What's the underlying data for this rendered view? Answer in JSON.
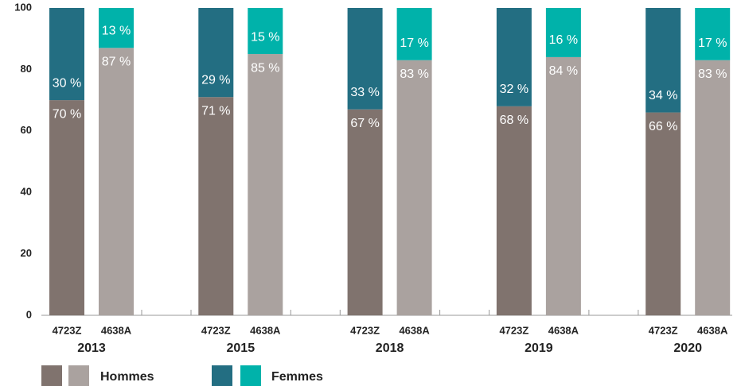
{
  "chart_data": {
    "type": "stacked_bar",
    "groups": [
      "2013",
      "2015",
      "2018",
      "2019",
      "2020"
    ],
    "categories": [
      "4723Z",
      "4638A",
      "4723Z",
      "4638A",
      "4723Z",
      "4638A",
      "4723Z",
      "4638A",
      "4723Z",
      "4638A"
    ],
    "series": [
      {
        "name": "Hommes",
        "colors": [
          "#80736e",
          "#aaa29f"
        ],
        "values": [
          70,
          87,
          71,
          85,
          67,
          83,
          68,
          84,
          66,
          83
        ],
        "value_labels": [
          "70 %",
          "87 %",
          "71 %",
          "85 %",
          "67 %",
          "83 %",
          "68 %",
          "84 %",
          "66 %",
          "83 %"
        ]
      },
      {
        "name": "Femmes",
        "colors": [
          "#236e82",
          "#00b2aa"
        ],
        "values": [
          30,
          13,
          29,
          15,
          33,
          17,
          32,
          16,
          34,
          17
        ],
        "value_labels": [
          "30 %",
          "13 %",
          "29 %",
          "15 %",
          "33 %",
          "17 %",
          "32 %",
          "16 %",
          "34 %",
          "17 %"
        ]
      }
    ],
    "ylim": [
      0,
      100
    ],
    "yticks": [
      0,
      20,
      40,
      60,
      80,
      100
    ],
    "grid": false
  }
}
